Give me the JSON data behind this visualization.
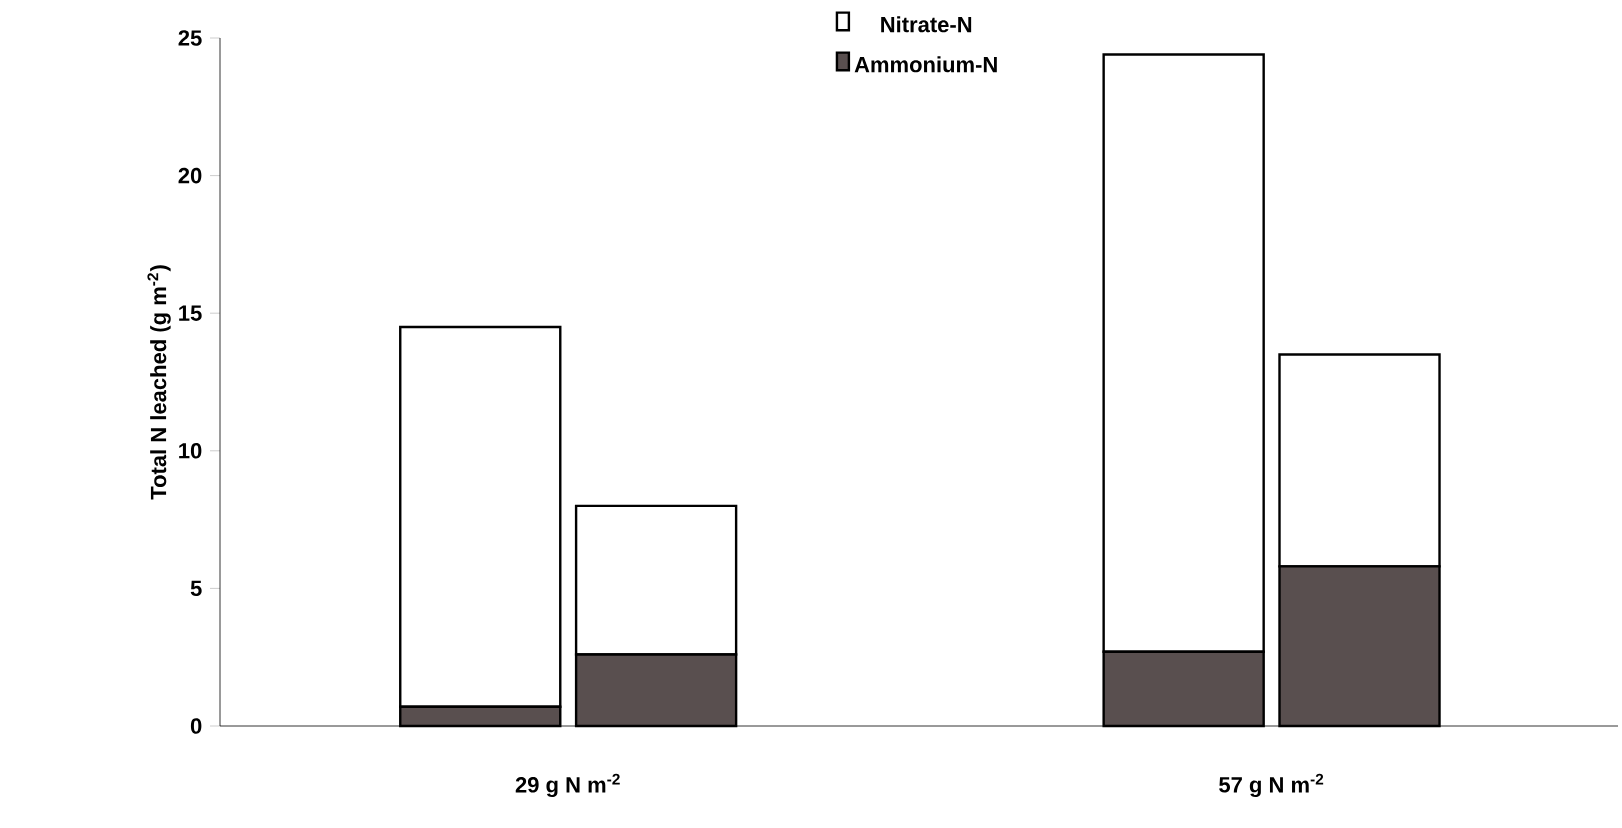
{
  "chart_data": {
    "type": "bar",
    "stacked": true,
    "ylabel": "Total N leached (g m$^{-2}$)",
    "categories": [
      null,
      null,
      null,
      null
    ],
    "series": [
      {
        "name": "Ammonium-N",
        "color": "#594f4f",
        "values": [
          0.7,
          2.6,
          2.7,
          5.8
        ]
      },
      {
        "name": "Nitrate-N",
        "color": "#ffffff",
        "values": [
          13.8,
          5.4,
          21.7,
          7.7
        ]
      }
    ],
    "ylim": [
      0,
      25
    ],
    "yticks": [
      0,
      5,
      10,
      15,
      20,
      25
    ],
    "legend": "top",
    "grid": false,
    "annotations": [
      "29 g N m$^{-2}$",
      "57 g N m$^{-2}$"
    ]
  }
}
